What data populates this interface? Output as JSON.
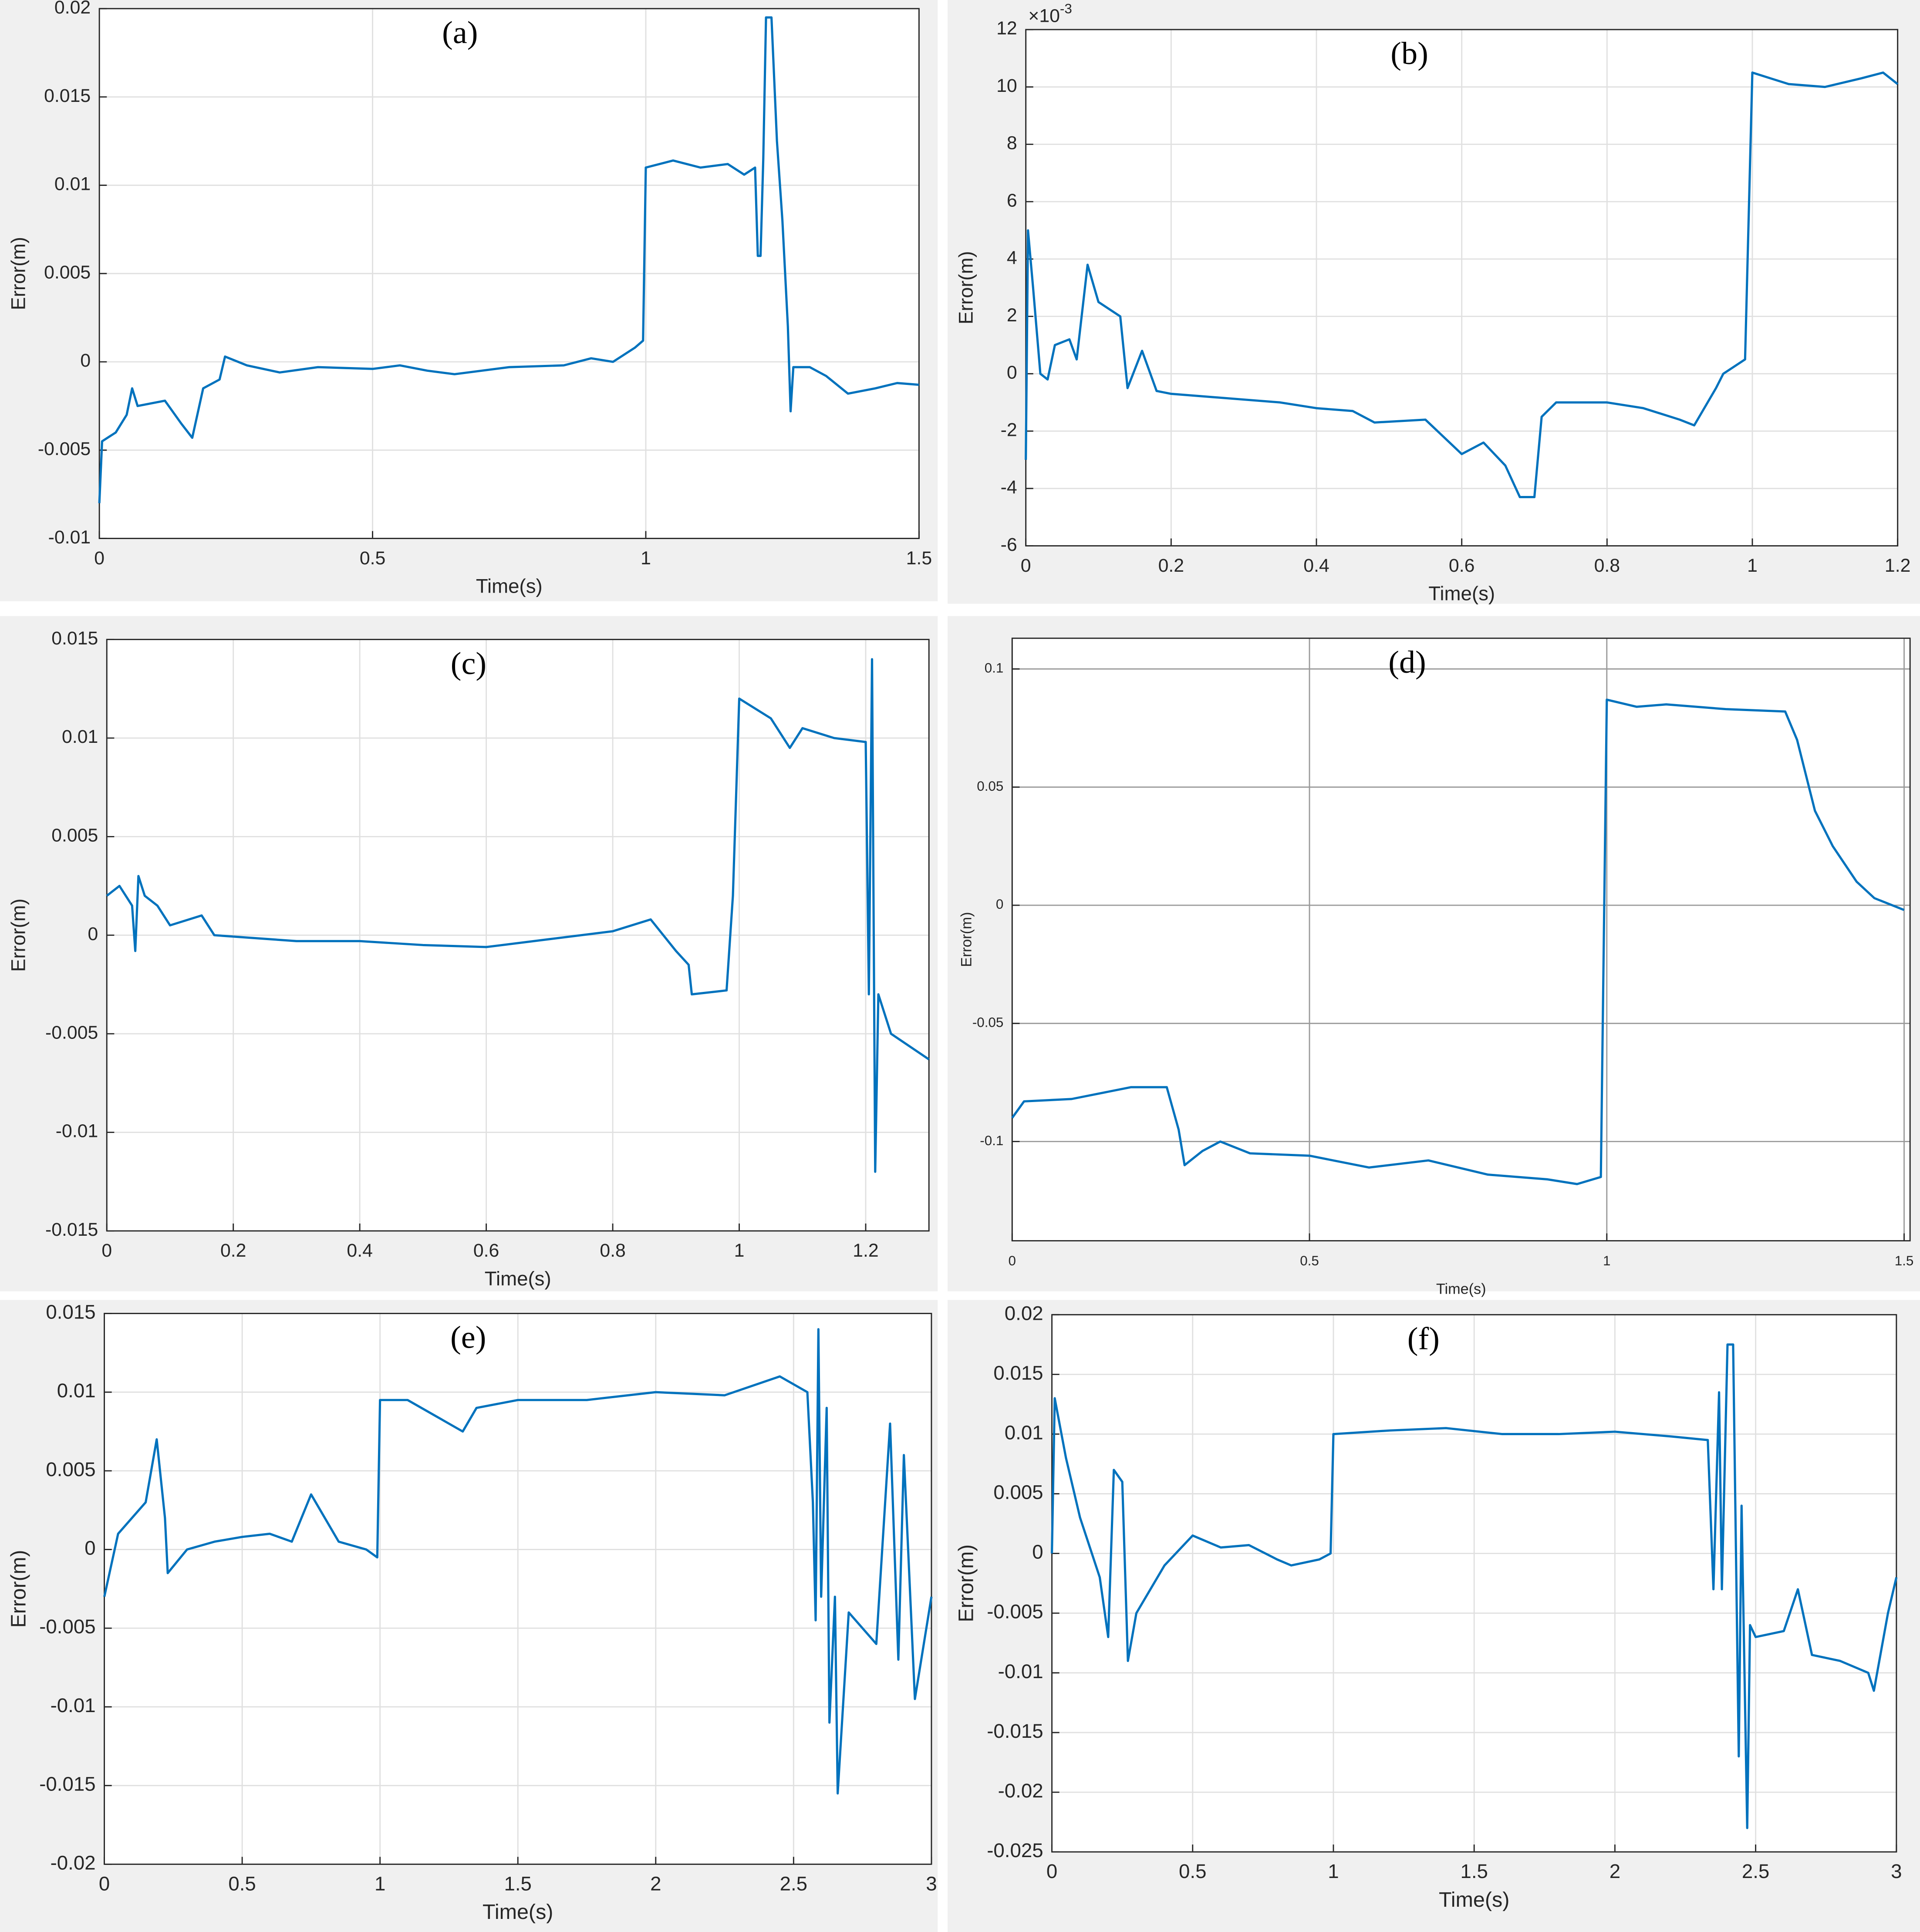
{
  "chart_data": [
    {
      "type": "line",
      "panel_label": "(a)",
      "xlabel": "Time(s)",
      "ylabel": "Error(m)",
      "color": "#0072bd",
      "grid": true,
      "xlim": [
        0,
        1.5
      ],
      "xticks": [
        0,
        0.5,
        1,
        1.5
      ],
      "ylim": [
        -0.01,
        0.02
      ],
      "yticks": [
        -0.01,
        -0.005,
        0,
        0.005,
        0.01,
        0.015,
        0.02
      ],
      "x": [
        0,
        0.005,
        0.03,
        0.05,
        0.06,
        0.07,
        0.12,
        0.15,
        0.17,
        0.19,
        0.22,
        0.23,
        0.27,
        0.33,
        0.4,
        0.5,
        0.55,
        0.6,
        0.65,
        0.75,
        0.85,
        0.9,
        0.94,
        0.98,
        0.995,
        1.0,
        1.05,
        1.1,
        1.15,
        1.18,
        1.2,
        1.205,
        1.21,
        1.215,
        1.22,
        1.23,
        1.24,
        1.25,
        1.26,
        1.265,
        1.27,
        1.3,
        1.33,
        1.37,
        1.42,
        1.46,
        1.5
      ],
      "values": [
        -0.008,
        -0.0045,
        -0.004,
        -0.003,
        -0.0015,
        -0.0025,
        -0.0022,
        -0.0035,
        -0.0043,
        -0.0015,
        -0.001,
        0.0003,
        -0.0002,
        -0.0006,
        -0.0003,
        -0.0004,
        -0.0002,
        -0.0005,
        -0.0007,
        -0.0003,
        -0.0002,
        0.0002,
        0,
        0.0008,
        0.0012,
        0.011,
        0.0114,
        0.011,
        0.0112,
        0.0106,
        0.011,
        0.006,
        0.006,
        0.0115,
        0.0195,
        0.0195,
        0.0125,
        0.008,
        0.002,
        -0.0028,
        -0.0003,
        -0.0003,
        -0.0008,
        -0.0018,
        -0.0015,
        -0.0012,
        -0.0013
      ]
    },
    {
      "type": "line",
      "panel_label": "(b)",
      "xlabel": "Time(s)",
      "ylabel": "Error(m)",
      "y_multiplier": "×10",
      "y_exponent": "-3",
      "color": "#0072bd",
      "grid": true,
      "xlim": [
        0,
        1.2
      ],
      "xticks": [
        0,
        0.2,
        0.4,
        0.6,
        0.8,
        1,
        1.2
      ],
      "ylim": [
        -6,
        12
      ],
      "yticks": [
        -6,
        -4,
        -2,
        0,
        2,
        4,
        6,
        8,
        10,
        12
      ],
      "x": [
        0,
        0.003,
        0.01,
        0.02,
        0.03,
        0.04,
        0.06,
        0.07,
        0.085,
        0.1,
        0.13,
        0.14,
        0.16,
        0.18,
        0.2,
        0.3,
        0.35,
        0.4,
        0.45,
        0.48,
        0.55,
        0.6,
        0.63,
        0.66,
        0.68,
        0.7,
        0.71,
        0.73,
        0.8,
        0.85,
        0.9,
        0.92,
        0.95,
        0.96,
        0.99,
        1.0,
        1.05,
        1.1,
        1.15,
        1.18,
        1.2
      ],
      "values": [
        -3,
        5,
        3,
        0,
        -0.2,
        1,
        1.2,
        0.5,
        3.8,
        2.5,
        2,
        -0.5,
        0.8,
        -0.6,
        -0.7,
        -0.9,
        -1,
        -1.2,
        -1.3,
        -1.7,
        -1.6,
        -2.8,
        -2.4,
        -3.2,
        -4.3,
        -4.3,
        -1.5,
        -1,
        -1,
        -1.2,
        -1.6,
        -1.8,
        -0.5,
        0,
        0.5,
        10.5,
        10.1,
        10,
        10.3,
        10.5,
        10.1
      ]
    },
    {
      "type": "line",
      "panel_label": "(c)",
      "xlabel": "Time(s)",
      "ylabel": "Error(m)",
      "color": "#0072bd",
      "grid": true,
      "xlim": [
        0,
        1.3
      ],
      "xticks": [
        0,
        0.2,
        0.4,
        0.6,
        0.8,
        1,
        1.2
      ],
      "ylim": [
        -0.015,
        0.015
      ],
      "yticks": [
        -0.015,
        -0.01,
        -0.005,
        0,
        0.005,
        0.01,
        0.015
      ],
      "x": [
        0,
        0.02,
        0.04,
        0.045,
        0.05,
        0.06,
        0.08,
        0.1,
        0.15,
        0.17,
        0.3,
        0.4,
        0.5,
        0.6,
        0.7,
        0.8,
        0.86,
        0.9,
        0.92,
        0.925,
        0.98,
        0.99,
        1.0,
        1.05,
        1.08,
        1.1,
        1.15,
        1.2,
        1.205,
        1.21,
        1.215,
        1.22,
        1.24,
        1.3
      ],
      "values": [
        0.002,
        0.0025,
        0.0015,
        -0.0008,
        0.003,
        0.002,
        0.0015,
        0.0005,
        0.001,
        0,
        -0.0003,
        -0.0003,
        -0.0005,
        -0.0006,
        -0.0002,
        0.0002,
        0.0008,
        -0.0008,
        -0.0015,
        -0.003,
        -0.0028,
        0.002,
        0.012,
        0.011,
        0.0095,
        0.0105,
        0.01,
        0.0098,
        -0.003,
        0.014,
        -0.012,
        -0.003,
        -0.005,
        -0.0063
      ]
    },
    {
      "type": "line",
      "panel_label": "(d)",
      "xlabel": "Time(s)",
      "ylabel": "Error(m)",
      "color": "#0072bd",
      "grid": true,
      "xlim": [
        0,
        1.51
      ],
      "xticks": [
        0,
        0.5,
        1,
        1.5
      ],
      "ylim": [
        -0.142,
        0.113
      ],
      "yticks": [
        -0.1,
        -0.05,
        0,
        0.05,
        0.1
      ],
      "x": [
        0,
        0.02,
        0.1,
        0.2,
        0.26,
        0.28,
        0.29,
        0.32,
        0.35,
        0.4,
        0.5,
        0.6,
        0.7,
        0.8,
        0.9,
        0.95,
        0.99,
        1.0,
        1.05,
        1.1,
        1.2,
        1.3,
        1.32,
        1.35,
        1.38,
        1.42,
        1.45,
        1.5
      ],
      "values": [
        -0.09,
        -0.083,
        -0.082,
        -0.077,
        -0.077,
        -0.095,
        -0.11,
        -0.104,
        -0.1,
        -0.105,
        -0.106,
        -0.111,
        -0.108,
        -0.114,
        -0.116,
        -0.118,
        -0.115,
        0.087,
        0.084,
        0.085,
        0.083,
        0.082,
        0.07,
        0.04,
        0.025,
        0.01,
        0.003,
        -0.002
      ]
    },
    {
      "type": "line",
      "panel_label": "(e)",
      "xlabel": "Time(s)",
      "ylabel": "Error(m)",
      "color": "#0072bd",
      "grid": true,
      "xlim": [
        0,
        3
      ],
      "xticks": [
        0,
        0.5,
        1,
        1.5,
        2,
        2.5,
        3
      ],
      "ylim": [
        -0.02,
        0.015
      ],
      "yticks": [
        -0.02,
        -0.015,
        -0.01,
        -0.005,
        0,
        0.005,
        0.01,
        0.015
      ],
      "x": [
        0,
        0.05,
        0.1,
        0.15,
        0.19,
        0.22,
        0.23,
        0.3,
        0.4,
        0.5,
        0.6,
        0.68,
        0.75,
        0.8,
        0.85,
        0.95,
        0.99,
        1.0,
        1.1,
        1.2,
        1.3,
        1.35,
        1.5,
        1.75,
        2.0,
        2.25,
        2.45,
        2.55,
        2.57,
        2.58,
        2.59,
        2.6,
        2.62,
        2.63,
        2.65,
        2.66,
        2.7,
        2.8,
        2.85,
        2.88,
        2.9,
        2.94,
        3.0
      ],
      "values": [
        -0.003,
        0.001,
        0.002,
        0.003,
        0.007,
        0.002,
        -0.0015,
        0,
        0.0005,
        0.0008,
        0.001,
        0.0005,
        0.0035,
        0.002,
        0.0005,
        0,
        -0.0005,
        0.0095,
        0.0095,
        0.0085,
        0.0075,
        0.009,
        0.0095,
        0.0095,
        0.01,
        0.0098,
        0.011,
        0.01,
        0.003,
        -0.0045,
        0.014,
        -0.003,
        0.009,
        -0.011,
        -0.003,
        -0.0155,
        -0.004,
        -0.006,
        0.008,
        -0.007,
        0.006,
        -0.0095,
        -0.003
      ]
    },
    {
      "type": "line",
      "panel_label": "(f)",
      "xlabel": "Time(s)",
      "ylabel": "Error(m)",
      "color": "#0072bd",
      "grid": true,
      "xlim": [
        0,
        3
      ],
      "xticks": [
        0,
        0.5,
        1,
        1.5,
        2,
        2.5,
        3
      ],
      "ylim": [
        -0.025,
        0.02
      ],
      "yticks": [
        -0.025,
        -0.02,
        -0.015,
        -0.01,
        -0.005,
        0,
        0.005,
        0.01,
        0.015,
        0.02
      ],
      "x": [
        0,
        0.01,
        0.05,
        0.1,
        0.17,
        0.2,
        0.22,
        0.25,
        0.27,
        0.3,
        0.4,
        0.5,
        0.6,
        0.7,
        0.8,
        0.85,
        0.95,
        0.99,
        1.0,
        1.2,
        1.4,
        1.6,
        1.8,
        2.0,
        2.2,
        2.33,
        2.35,
        2.37,
        2.38,
        2.4,
        2.42,
        2.44,
        2.45,
        2.47,
        2.48,
        2.5,
        2.6,
        2.65,
        2.7,
        2.8,
        2.9,
        2.92,
        2.97,
        3.0
      ],
      "values": [
        0,
        0.013,
        0.008,
        0.003,
        -0.002,
        -0.007,
        0.007,
        0.006,
        -0.009,
        -0.005,
        -0.001,
        0.0015,
        0.0005,
        0.0007,
        -0.0005,
        -0.001,
        -0.0005,
        0,
        0.01,
        0.0103,
        0.0105,
        0.01,
        0.01,
        0.0102,
        0.0098,
        0.0095,
        -0.003,
        0.0135,
        -0.003,
        0.0175,
        0.0175,
        -0.017,
        0.004,
        -0.023,
        -0.006,
        -0.007,
        -0.0065,
        -0.003,
        -0.0085,
        -0.009,
        -0.01,
        -0.0115,
        -0.005,
        -0.002
      ]
    }
  ]
}
